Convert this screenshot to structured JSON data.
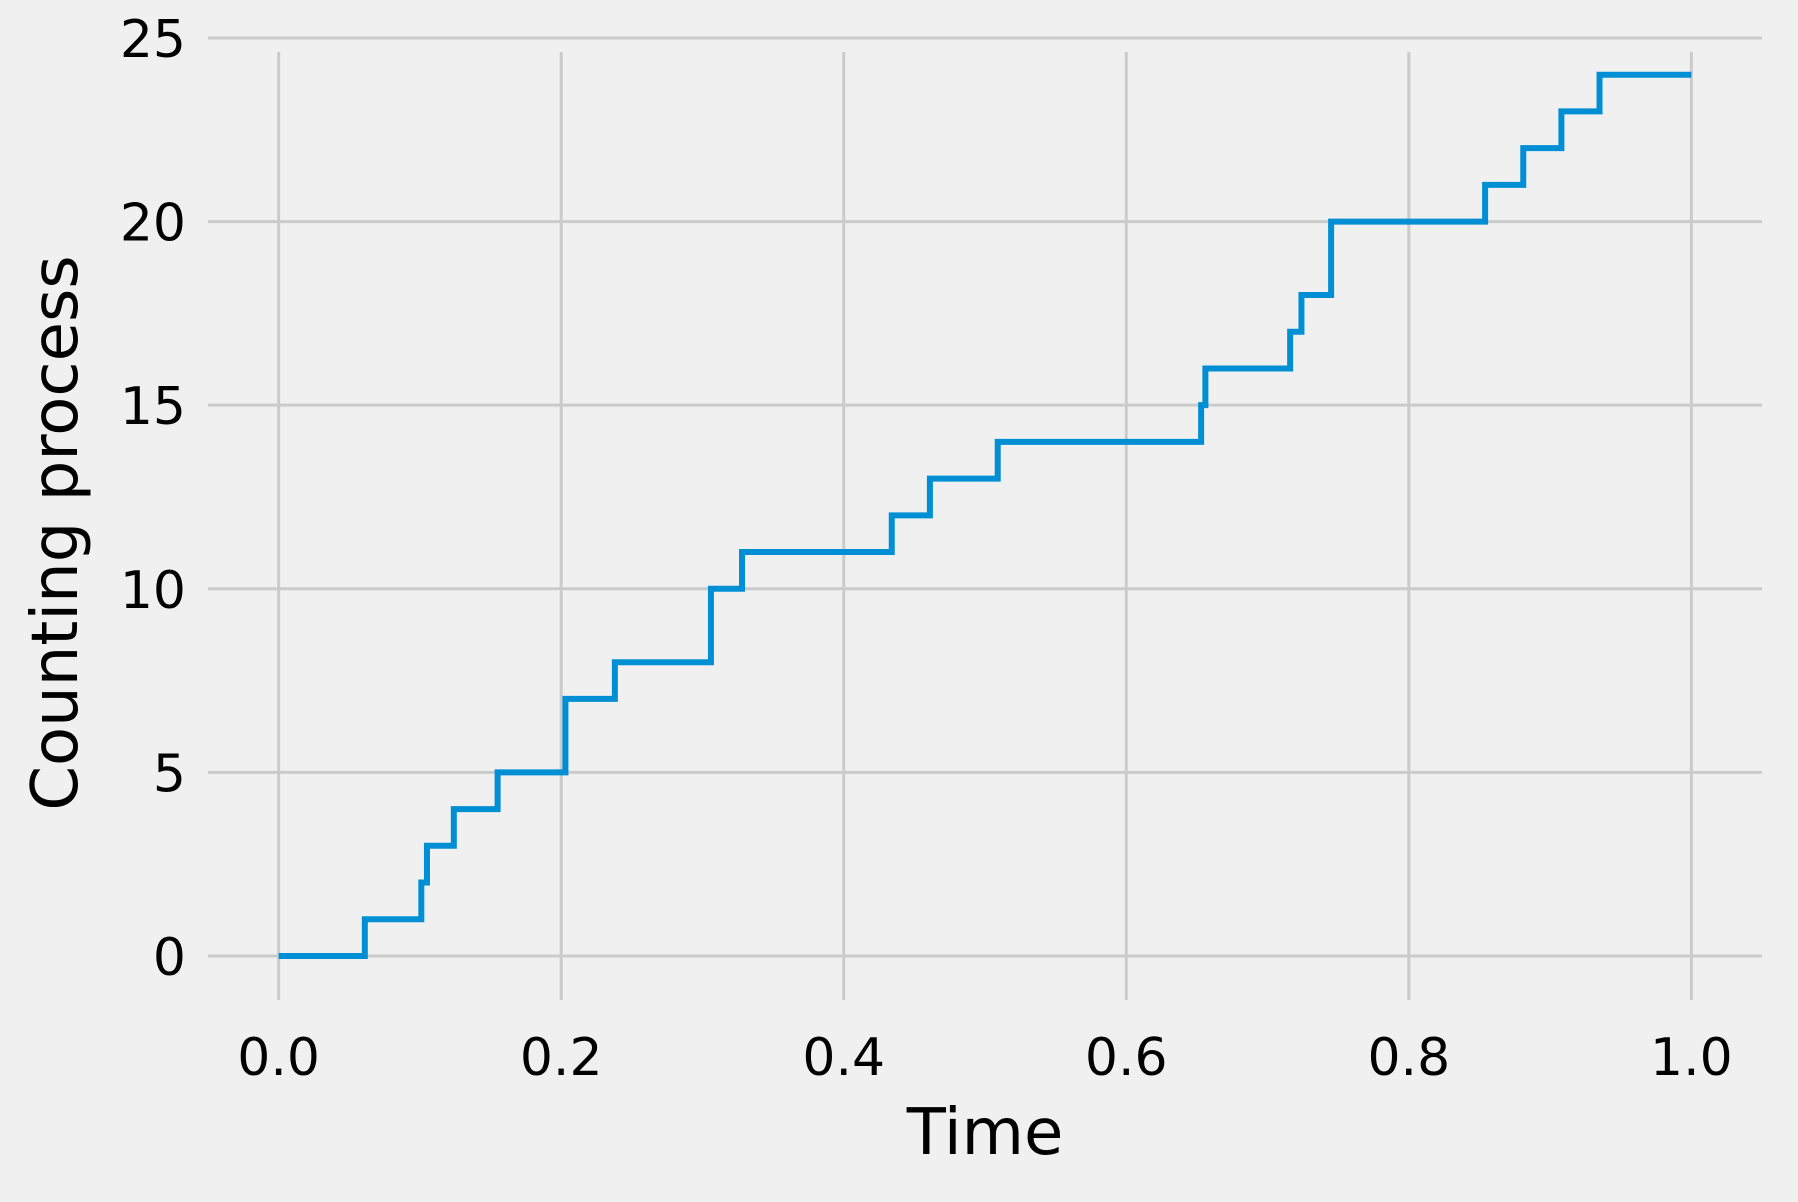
{
  "chart_data": {
    "type": "line",
    "step": "post",
    "title": "",
    "xlabel": "Time",
    "ylabel": "Counting process",
    "xlim": [
      -0.05,
      1.05
    ],
    "ylim": [
      -1.2,
      25
    ],
    "xticks": [
      0.0,
      0.2,
      0.4,
      0.6,
      0.8,
      1.0
    ],
    "xtick_labels": [
      "0.0",
      "0.2",
      "0.4",
      "0.6",
      "0.8",
      "1.0"
    ],
    "yticks": [
      0,
      5,
      10,
      15,
      20,
      25
    ],
    "ytick_labels": [
      "0",
      "5",
      "10",
      "15",
      "20",
      "25"
    ],
    "grid": true,
    "legend": "none",
    "series": [
      {
        "color": "#008fd5",
        "x": [
          0.0,
          0.061,
          0.101,
          0.105,
          0.124,
          0.155,
          0.203,
          0.238,
          0.306,
          0.328,
          0.434,
          0.461,
          0.509,
          0.653,
          0.656,
          0.716,
          0.724,
          0.745,
          0.854,
          0.881,
          0.908,
          0.935,
          1.0
        ],
        "y": [
          0,
          1,
          2,
          3,
          4,
          5,
          7,
          8,
          10,
          11,
          12,
          13,
          14,
          15,
          16,
          17,
          18,
          20,
          21,
          22,
          23,
          24,
          24
        ]
      }
    ]
  }
}
